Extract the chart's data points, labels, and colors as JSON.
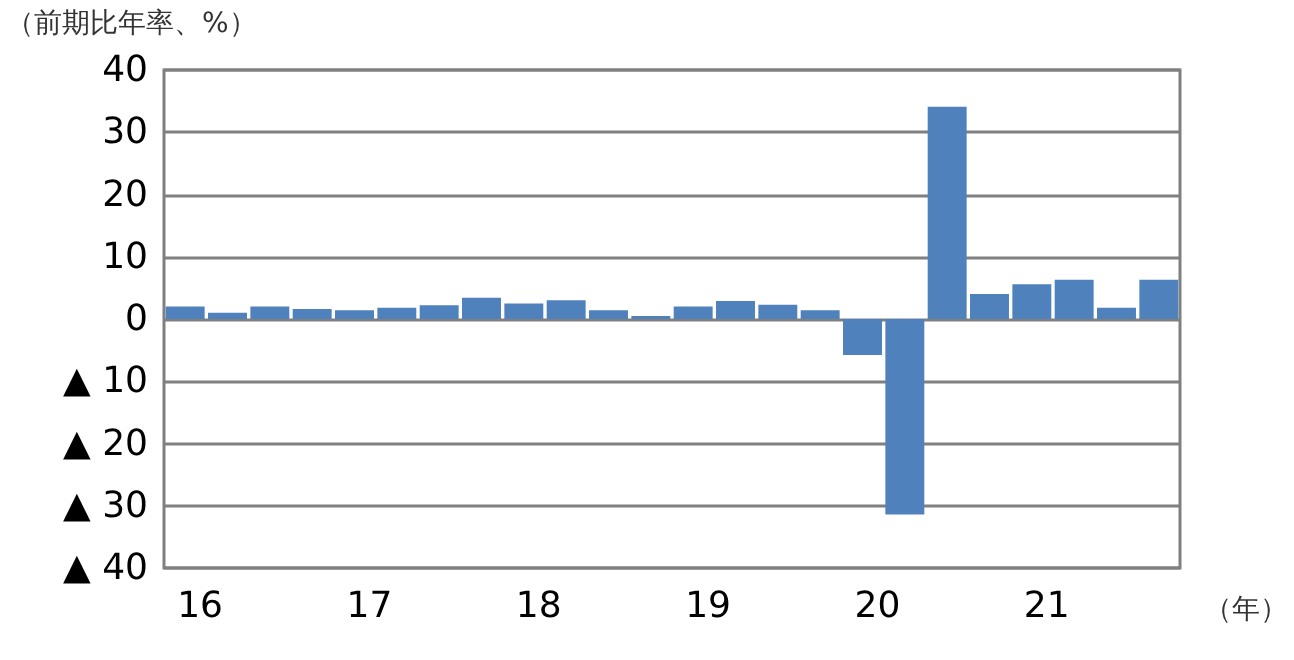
{
  "chart_data": {
    "type": "bar",
    "ylabel": "（前期比年率、%）",
    "xlabel": "（年）",
    "categories": [
      "16",
      null,
      null,
      null,
      "17",
      null,
      null,
      null,
      "18",
      null,
      null,
      null,
      "19",
      null,
      null,
      null,
      "20",
      null,
      null,
      null,
      "21",
      null,
      null,
      null
    ],
    "values": [
      2.0,
      1.0,
      2.0,
      1.6,
      1.4,
      1.8,
      2.2,
      3.4,
      2.5,
      3.0,
      1.4,
      0.5,
      2.0,
      2.9,
      2.3,
      1.4,
      -5.8,
      -31.4,
      34.1,
      4.0,
      5.6,
      6.3,
      1.8,
      6.3
    ],
    "color": "#4f81bd",
    "ylim": [
      -40,
      40
    ],
    "yticks": [
      {
        "value": -40,
        "label": "▲ 40"
      },
      {
        "value": -30,
        "label": "▲ 30"
      },
      {
        "value": -20,
        "label": "▲ 20"
      },
      {
        "value": -10,
        "label": "▲ 10"
      },
      0,
      10,
      20,
      30,
      40
    ],
    "grid": "y"
  }
}
